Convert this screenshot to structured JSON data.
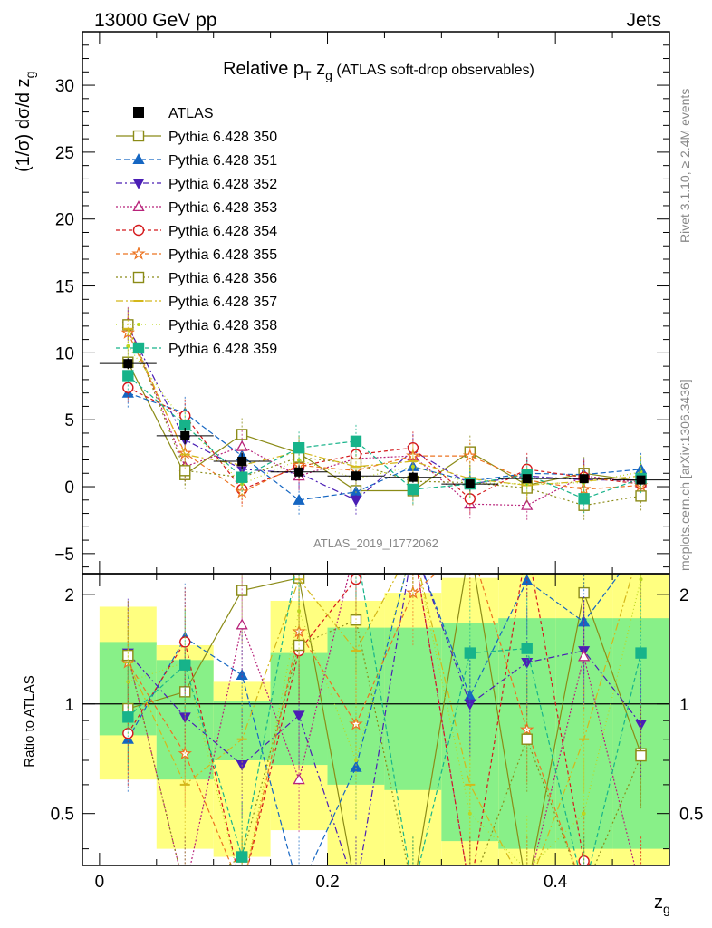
{
  "header": {
    "left": "13000 GeV pp",
    "right": "Jets"
  },
  "chart_data": {
    "type": "scatter",
    "title": "Relative p_T z_g (ATLAS soft-drop observables)",
    "title_main": "Relative p",
    "title_sub_T": "T",
    "title_zg": " z",
    "title_sub_g": "g",
    "title_tail": " (ATLAS soft-drop observables)",
    "ylabel": "(1/σ) dσ/d z_g",
    "ylabel_main": "(1/σ) dσ/d z",
    "ylabel_sub": "g",
    "xlabel_main": "z",
    "xlabel_sub": "g",
    "ratio_ylabel": "Ratio to ATLAS",
    "watermark": "ATLAS_2019_I1772062",
    "side_label_top": "Rivet 3.1.10, ≥ 2.4M events",
    "side_label_bottom": "mcplots.cern.ch [arXiv:1306.3436]",
    "xlim": [
      -0.015,
      0.5
    ],
    "ylim": [
      -6.5,
      34
    ],
    "ratio_ylim": [
      0.36,
      2.28
    ],
    "ratio_log": true,
    "x_ticks": [
      "0",
      "0.2",
      "0.4"
    ],
    "y_ticks": [
      "−5",
      "0",
      "5",
      "10",
      "15",
      "20",
      "25",
      "30"
    ],
    "ratio_ticks": [
      "0.5",
      "1",
      "2"
    ],
    "legend_position": "top-left",
    "x": [
      0.025,
      0.075,
      0.125,
      0.175,
      0.225,
      0.275,
      0.325,
      0.375,
      0.425,
      0.475
    ],
    "bin_edges": [
      0.0,
      0.05,
      0.1,
      0.15,
      0.2,
      0.25,
      0.3,
      0.35,
      0.4,
      0.45,
      0.5
    ],
    "data": {
      "name": "ATLAS",
      "values": [
        9.2,
        3.8,
        1.9,
        1.1,
        0.8,
        0.7,
        0.2,
        0.6,
        0.6,
        0.5
      ],
      "errors": [
        0.4,
        0.6,
        0.6,
        0.5,
        0.4,
        0.4,
        0.3,
        0.3,
        0.3,
        0.3
      ]
    },
    "band_yellow": [
      [
        0.62,
        1.85
      ],
      [
        0.4,
        1.45
      ],
      [
        0.38,
        1.15
      ],
      [
        0.45,
        1.92
      ],
      [
        0.3,
        1.92
      ],
      [
        0.35,
        2.02
      ],
      [
        0.25,
        2.22
      ],
      [
        0.22,
        2.27
      ],
      [
        0.22,
        2.27
      ],
      [
        0.22,
        2.27
      ]
    ],
    "band_green": [
      [
        0.82,
        1.48
      ],
      [
        0.62,
        1.32
      ],
      [
        0.7,
        1.02
      ],
      [
        0.68,
        1.38
      ],
      [
        0.6,
        1.62
      ],
      [
        0.58,
        1.62
      ],
      [
        0.42,
        1.67
      ],
      [
        0.4,
        1.72
      ],
      [
        0.4,
        1.72
      ],
      [
        0.4,
        1.72
      ]
    ],
    "series": [
      {
        "name": "Pythia 6.428 350",
        "color": "#8b8b17",
        "marker": "square-open",
        "dash": "",
        "values": [
          9.3,
          0.9,
          3.9,
          2.5,
          -0.3,
          -0.3,
          2.6,
          0.1,
          1.0,
          0.4
        ],
        "ratio": [
          0.97,
          1.08,
          2.05,
          2.22,
          0.2,
          0.2,
          3.0,
          0.2,
          2.02,
          0.73
        ]
      },
      {
        "name": "Pythia 6.428 351",
        "color": "#1566c2",
        "marker": "triangle-up",
        "dash": "6,3",
        "values": [
          7.0,
          5.5,
          2.3,
          -1.0,
          -0.4,
          1.5,
          0.4,
          1.0,
          0.9,
          1.3
        ],
        "ratio": [
          0.8,
          1.52,
          1.2,
          0.2,
          0.67,
          3.0,
          1.05,
          2.18,
          1.68,
          3.0
        ]
      },
      {
        "name": "Pythia 6.428 352",
        "color": "#4b1fb5",
        "marker": "triangle-down",
        "dash": "7,3,2,3",
        "values": [
          12.0,
          3.5,
          1.3,
          1.0,
          -1.0,
          2.7,
          0.2,
          0.8,
          0.5,
          0.5
        ],
        "ratio": [
          1.38,
          0.92,
          0.68,
          0.93,
          0.2,
          3.0,
          1.0,
          1.3,
          1.4,
          0.88
        ]
      },
      {
        "name": "Pythia 6.428 353",
        "color": "#b8237a",
        "marker": "triangle-up-open",
        "dash": "2,2",
        "values": [
          12.2,
          1.5,
          3.0,
          0.8,
          2.1,
          2.3,
          -1.3,
          -1.4,
          0.8,
          0.3
        ],
        "ratio": [
          1.36,
          0.25,
          1.65,
          0.62,
          3.0,
          3.0,
          0.25,
          0.25,
          1.35,
          0.3
        ]
      },
      {
        "name": "Pythia 6.428 354",
        "color": "#d4191c",
        "marker": "circle-open",
        "dash": "4,3",
        "values": [
          7.4,
          5.3,
          -0.2,
          1.5,
          2.4,
          2.9,
          -0.9,
          1.3,
          0.7,
          0.2
        ],
        "ratio": [
          0.83,
          1.48,
          0.2,
          1.4,
          2.2,
          3.0,
          0.2,
          3.0,
          0.37,
          0.3
        ]
      },
      {
        "name": "Pythia 6.428 355",
        "color": "#ec7320",
        "marker": "star-open",
        "dash": "5,3",
        "values": [
          11.5,
          2.5,
          -0.4,
          1.6,
          1.2,
          2.3,
          2.3,
          0.5,
          -0.2,
          0.1
        ],
        "ratio": [
          1.3,
          0.73,
          0.2,
          1.58,
          0.88,
          2.02,
          3.0,
          0.85,
          0.25,
          0.3
        ]
      },
      {
        "name": "Pythia 6.428 356",
        "color": "#8b8b17",
        "marker": "square-open",
        "dash": "2,3",
        "values": [
          12.1,
          1.2,
          0.7,
          2.2,
          1.7,
          0.4,
          0.3,
          -0.1,
          -1.4,
          -0.7
        ],
        "ratio": [
          1.36,
          0.3,
          0.38,
          1.45,
          1.7,
          0.25,
          0.3,
          0.8,
          0.25,
          0.72
        ]
      },
      {
        "name": "Pythia 6.428 357",
        "color": "#d4b71a",
        "marker": "dash",
        "dash": "8,3,2,3",
        "values": [
          11.8,
          2.4,
          1.6,
          2.6,
          1.5,
          1.9,
          0.6,
          0.1,
          0.4,
          0.8
        ],
        "ratio": [
          1.3,
          0.6,
          0.8,
          2.2,
          1.4,
          3.0,
          0.6,
          0.2,
          0.8,
          3.0
        ]
      },
      {
        "name": "Pythia 6.428 358",
        "color": "#bcd61f",
        "marker": "dot",
        "dash": "1,3",
        "values": [
          10.5,
          4.7,
          0.2,
          2.0,
          0.6,
          1.5,
          0.3,
          0.2,
          0.3,
          1.1
        ],
        "ratio": [
          1.15,
          1.3,
          0.25,
          1.8,
          0.7,
          3.0,
          0.5,
          0.35,
          0.5,
          2.2
        ]
      },
      {
        "name": "Pythia 6.428 359",
        "color": "#17b38a",
        "marker": "square",
        "dash": "5,3",
        "values": [
          8.3,
          4.6,
          0.7,
          2.9,
          3.4,
          -0.2,
          0.2,
          0.9,
          -0.9,
          0.6
        ],
        "ratio": [
          0.92,
          1.28,
          0.38,
          2.6,
          3.0,
          0.2,
          1.38,
          1.42,
          0.25,
          1.38
        ]
      }
    ]
  }
}
